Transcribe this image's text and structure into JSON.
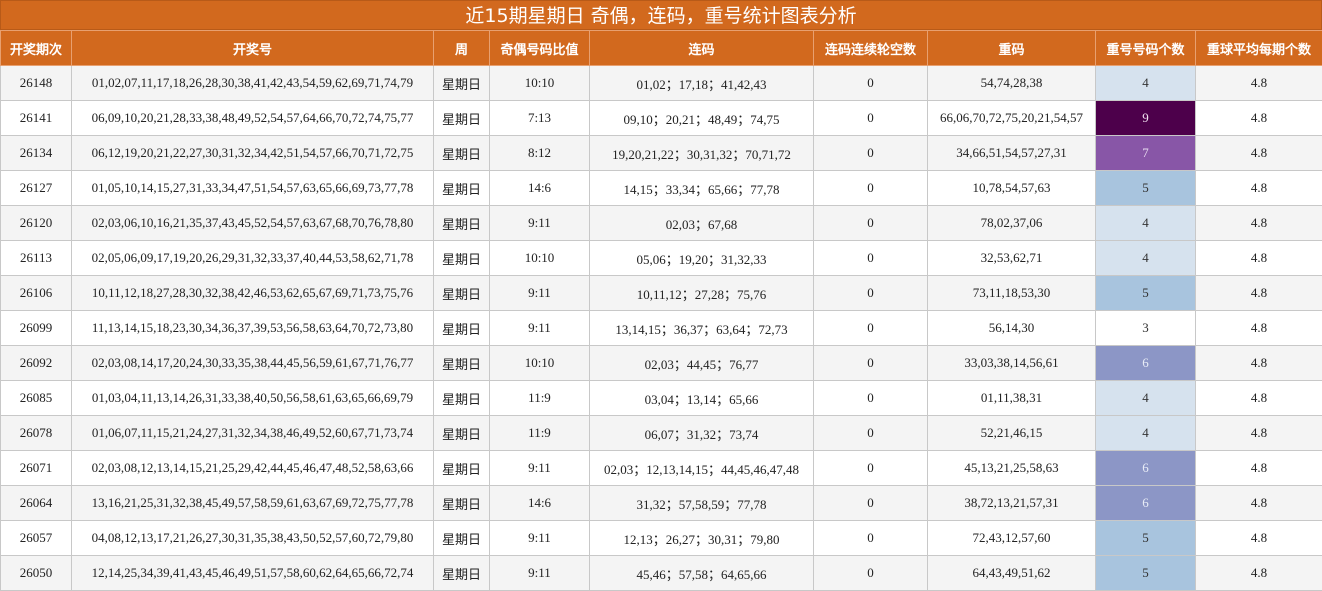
{
  "header": {
    "title": "近15期星期日 奇偶，连码，重号统计图表分析"
  },
  "table": {
    "columns": [
      "开奖期次",
      "开奖号",
      "周",
      "奇偶号码比值",
      "连码",
      "连码连续轮空数",
      "重码",
      "重号号码个数",
      "重球平均每期个数"
    ],
    "rows": [
      [
        "26148",
        "01,02,07,11,17,18,26,28,30,38,41,42,43,54,59,62,69,71,74,79",
        "星期日",
        "10:10",
        "01,02；17,18；41,42,43",
        "0",
        "54,74,28,38",
        "4",
        "4.8"
      ],
      [
        "26141",
        "06,09,10,20,21,28,33,38,48,49,52,54,57,64,66,70,72,74,75,77",
        "星期日",
        "7:13",
        "09,10；20,21；48,49；74,75",
        "0",
        "66,06,70,72,75,20,21,54,57",
        "9",
        "4.8"
      ],
      [
        "26134",
        "06,12,19,20,21,22,27,30,31,32,34,42,51,54,57,66,70,71,72,75",
        "星期日",
        "8:12",
        "19,20,21,22；30,31,32；70,71,72",
        "0",
        "34,66,51,54,57,27,31",
        "7",
        "4.8"
      ],
      [
        "26127",
        "01,05,10,14,15,27,31,33,34,47,51,54,57,63,65,66,69,73,77,78",
        "星期日",
        "14:6",
        "14,15；33,34；65,66；77,78",
        "0",
        "10,78,54,57,63",
        "5",
        "4.8"
      ],
      [
        "26120",
        "02,03,06,10,16,21,35,37,43,45,52,54,57,63,67,68,70,76,78,80",
        "星期日",
        "9:11",
        "02,03；67,68",
        "0",
        "78,02,37,06",
        "4",
        "4.8"
      ],
      [
        "26113",
        "02,05,06,09,17,19,20,26,29,31,32,33,37,40,44,53,58,62,71,78",
        "星期日",
        "10:10",
        "05,06；19,20；31,32,33",
        "0",
        "32,53,62,71",
        "4",
        "4.8"
      ],
      [
        "26106",
        "10,11,12,18,27,28,30,32,38,42,46,53,62,65,67,69,71,73,75,76",
        "星期日",
        "9:11",
        "10,11,12；27,28；75,76",
        "0",
        "73,11,18,53,30",
        "5",
        "4.8"
      ],
      [
        "26099",
        "11,13,14,15,18,23,30,34,36,37,39,53,56,58,63,64,70,72,73,80",
        "星期日",
        "9:11",
        "13,14,15；36,37；63,64；72,73",
        "0",
        "56,14,30",
        "3",
        "4.8"
      ],
      [
        "26092",
        "02,03,08,14,17,20,24,30,33,35,38,44,45,56,59,61,67,71,76,77",
        "星期日",
        "10:10",
        "02,03；44,45；76,77",
        "0",
        "33,03,38,14,56,61",
        "6",
        "4.8"
      ],
      [
        "26085",
        "01,03,04,11,13,14,26,31,33,38,40,50,56,58,61,63,65,66,69,79",
        "星期日",
        "11:9",
        "03,04；13,14；65,66",
        "0",
        "01,11,38,31",
        "4",
        "4.8"
      ],
      [
        "26078",
        "01,06,07,11,15,21,24,27,31,32,34,38,46,49,52,60,67,71,73,74",
        "星期日",
        "11:9",
        "06,07；31,32；73,74",
        "0",
        "52,21,46,15",
        "4",
        "4.8"
      ],
      [
        "26071",
        "02,03,08,12,13,14,15,21,25,29,42,44,45,46,47,48,52,58,63,66",
        "星期日",
        "9:11",
        "02,03；12,13,14,15；44,45,46,47,48",
        "0",
        "45,13,21,25,58,63",
        "6",
        "4.8"
      ],
      [
        "26064",
        "13,16,21,25,31,32,38,45,49,57,58,59,61,63,67,69,72,75,77,78",
        "星期日",
        "14:6",
        "31,32；57,58,59；77,78",
        "0",
        "38,72,13,21,57,31",
        "6",
        "4.8"
      ],
      [
        "26057",
        "04,08,12,13,17,21,26,27,30,31,35,38,43,50,52,57,60,72,79,80",
        "星期日",
        "9:11",
        "12,13；26,27；30,31；79,80",
        "0",
        "72,43,12,57,60",
        "5",
        "4.8"
      ],
      [
        "26050",
        "12,14,25,34,39,41,43,45,46,49,51,57,58,60,62,64,65,66,72,74",
        "星期日",
        "9:11",
        "45,46；57,58；64,65,66",
        "0",
        "64,43,49,51,62",
        "5",
        "4.8"
      ]
    ],
    "heat_column": 7,
    "heat_colors": [
      {
        "fill": "#d6e2ee",
        "text": "#333333"
      },
      {
        "fill": "#4d004b",
        "text": "#f0e0f0"
      },
      {
        "fill": "#8856a7",
        "text": "#e8dcf0"
      },
      {
        "fill": "#a8c4de",
        "text": "#333333"
      },
      {
        "fill": "#d6e2ee",
        "text": "#333333"
      },
      {
        "fill": "#d6e2ee",
        "text": "#333333"
      },
      {
        "fill": "#a8c4de",
        "text": "#333333"
      },
      {
        "fill": "#ffffff",
        "text": "#333333"
      },
      {
        "fill": "#8c96c6",
        "text": "#e8ecf6"
      },
      {
        "fill": "#d6e2ee",
        "text": "#333333"
      },
      {
        "fill": "#d6e2ee",
        "text": "#333333"
      },
      {
        "fill": "#8c96c6",
        "text": "#e8ecf6"
      },
      {
        "fill": "#8c96c6",
        "text": "#e8ecf6"
      },
      {
        "fill": "#a8c4de",
        "text": "#333333"
      },
      {
        "fill": "#a8c4de",
        "text": "#333333"
      }
    ]
  }
}
